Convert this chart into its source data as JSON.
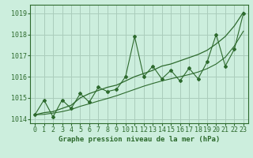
{
  "hours": [
    0,
    1,
    2,
    3,
    4,
    5,
    6,
    7,
    8,
    9,
    10,
    11,
    12,
    13,
    14,
    15,
    16,
    17,
    18,
    19,
    20,
    21,
    22,
    23
  ],
  "pressure_zigzag": [
    1014.2,
    1014.9,
    1014.1,
    1014.9,
    1014.5,
    1015.2,
    1014.8,
    1015.5,
    1015.3,
    1015.4,
    1016.0,
    1017.9,
    1016.0,
    1016.5,
    1015.9,
    1016.3,
    1015.8,
    1016.4,
    1015.9,
    1016.7,
    1018.0,
    1016.5,
    1017.3,
    1019.0
  ],
  "pressure_trend_upper": [
    1014.2,
    1014.3,
    1014.35,
    1014.5,
    1014.65,
    1015.0,
    1015.2,
    1015.35,
    1015.5,
    1015.6,
    1015.8,
    1016.0,
    1016.15,
    1016.3,
    1016.5,
    1016.6,
    1016.75,
    1016.9,
    1017.05,
    1017.25,
    1017.55,
    1017.9,
    1018.4,
    1019.05
  ],
  "pressure_trend_lower": [
    1014.2,
    1014.22,
    1014.28,
    1014.35,
    1014.45,
    1014.6,
    1014.72,
    1014.85,
    1014.97,
    1015.1,
    1015.25,
    1015.4,
    1015.55,
    1015.68,
    1015.8,
    1015.9,
    1016.0,
    1016.1,
    1016.22,
    1016.38,
    1016.6,
    1016.92,
    1017.45,
    1018.15
  ],
  "ylim": [
    1013.8,
    1019.4
  ],
  "yticks": [
    1014,
    1015,
    1016,
    1017,
    1018,
    1019
  ],
  "xlim": [
    -0.5,
    23.5
  ],
  "line_color": "#2d6a2d",
  "bg_color": "#cceedd",
  "grid_color": "#aaccbb",
  "xlabel": "Graphe pression niveau de la mer (hPa)",
  "xlabel_fontsize": 6.5,
  "tick_fontsize": 6,
  "marker": "D",
  "marker_size": 2.0,
  "tick_labels": [
    "0",
    "1",
    "2",
    "3",
    "4",
    "5",
    "6",
    "7",
    "8",
    "9",
    "10",
    "11",
    "12",
    "13",
    "14",
    "15",
    "16",
    "17",
    "18",
    "19",
    "20",
    "21",
    "22",
    "23"
  ]
}
